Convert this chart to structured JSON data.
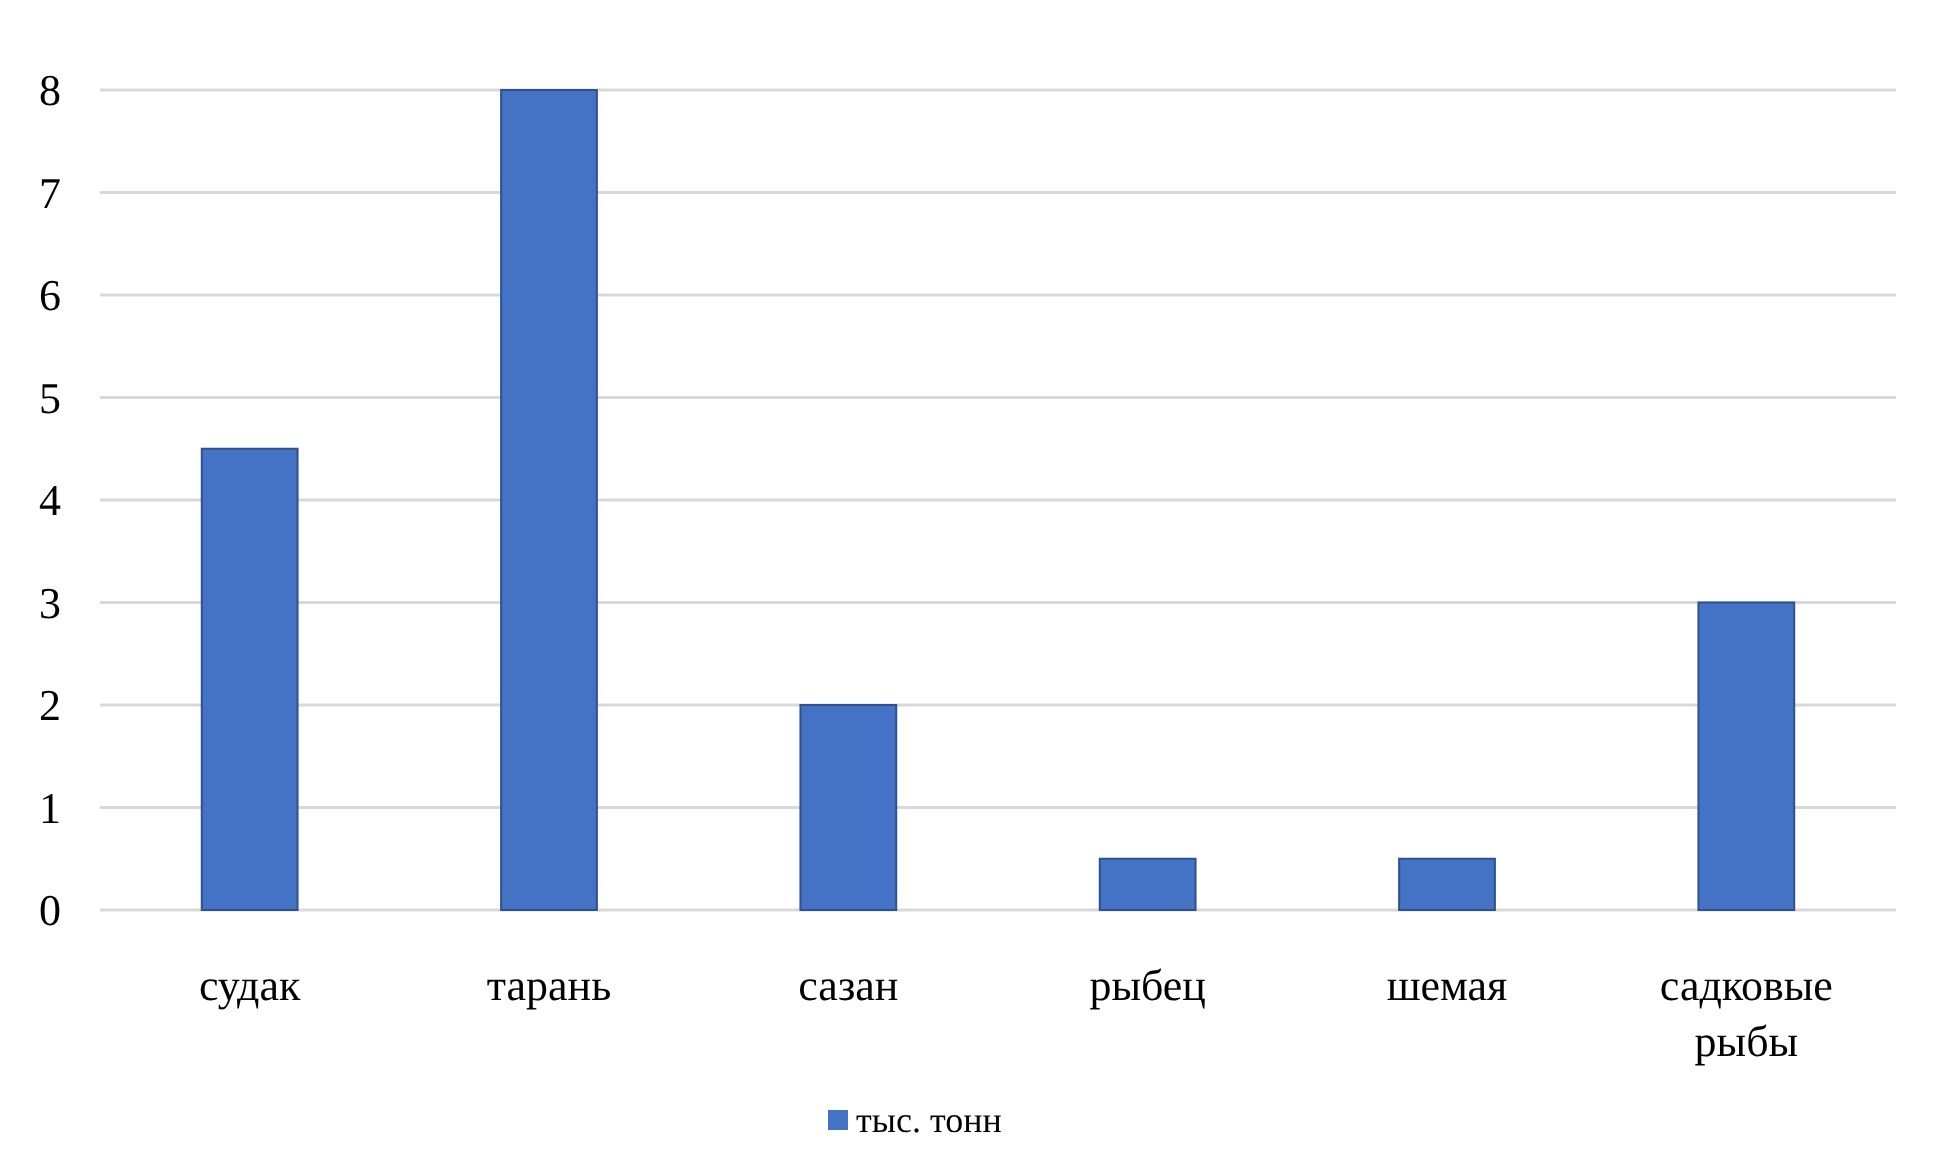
{
  "chart_data": {
    "type": "bar",
    "categories": [
      "судак",
      "тарань",
      "сазан",
      "рыбец",
      "шемая",
      "садковые рыбы"
    ],
    "series": [
      {
        "name": "тыс. тонн",
        "color": "#4472c4",
        "values": [
          4.5,
          8,
          2,
          0.5,
          0.5,
          3
        ]
      }
    ],
    "ylim": [
      0,
      8
    ],
    "yticks": [
      0,
      1,
      2,
      3,
      4,
      5,
      6,
      7,
      8
    ],
    "grid": "y",
    "legend": "bottom"
  }
}
